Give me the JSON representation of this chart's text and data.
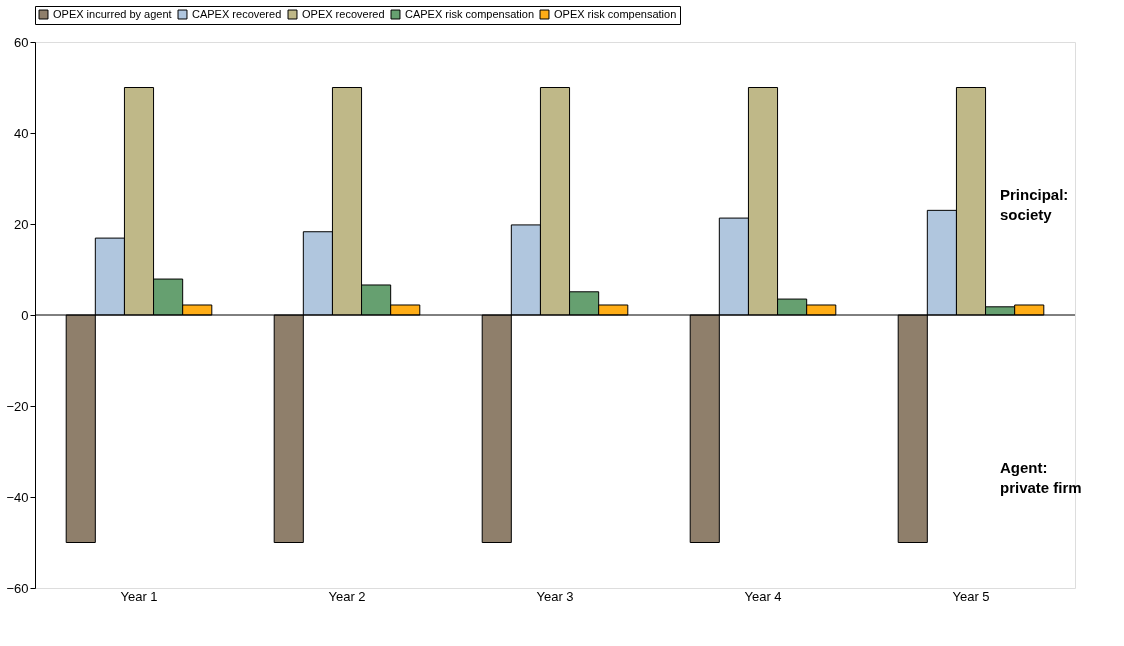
{
  "chart_data": {
    "type": "bar",
    "categories": [
      "Year 1",
      "Year 2",
      "Year 3",
      "Year 4",
      "Year 5"
    ],
    "series": [
      {
        "name": "OPEX incurred by agent",
        "color": "#8f7f6b",
        "values": [
          -50,
          -50,
          -50,
          -50,
          -50
        ]
      },
      {
        "name": "CAPEX recovered",
        "color": "#b0c6de",
        "values": [
          16.9,
          18.3,
          19.8,
          21.3,
          23.0
        ]
      },
      {
        "name": "OPEX recovered",
        "color": "#bfb888",
        "values": [
          50,
          50,
          50,
          50,
          50
        ]
      },
      {
        "name": "CAPEX risk compensation",
        "color": "#66a070",
        "values": [
          7.9,
          6.6,
          5.1,
          3.5,
          1.8
        ]
      },
      {
        "name": "OPEX risk compensation",
        "color": "#ffad16",
        "values": [
          2.2,
          2.2,
          2.2,
          2.2,
          2.2
        ]
      }
    ],
    "ylim": [
      -60,
      60
    ],
    "yticks": [
      -60,
      -40,
      -20,
      0,
      20,
      40,
      60
    ],
    "ref_lines": [
      {
        "axis": "y",
        "value": 0
      }
    ],
    "annotations": [
      "Principal:\nsociety",
      "Agent:\nprivate firm"
    ],
    "grid": false,
    "legend": "top"
  }
}
